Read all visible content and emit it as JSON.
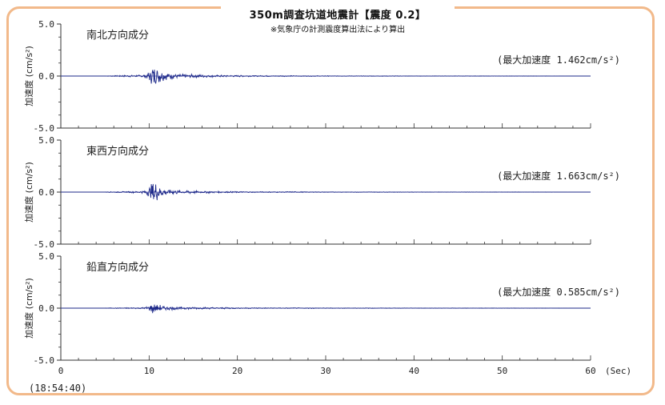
{
  "title": "350m調査坑道地震計【震度 0.2】",
  "subtitle": "※気象庁の計測震度算出法により算出",
  "timestamp": "(18:54:40)",
  "chart_data": {
    "type": "line",
    "x_unit": "(Sec)",
    "x_ticks": [
      "0",
      "10",
      "20",
      "30",
      "40",
      "50",
      "60"
    ],
    "xlim": [
      0,
      60
    ],
    "ylim": [
      -5.0,
      5.0
    ],
    "y_ticks": [
      "5.0",
      "0.0",
      "-5.0"
    ],
    "ylabel": "加速度 (cm/s²)",
    "line_color": "#1e2a8a",
    "axis_line_color": "#8a8ad0",
    "panels": [
      {
        "name": "南北方向成分",
        "peak_label": "(最大加速度 1.462cm/s²)",
        "peak": 1.462,
        "series": [
          [
            0,
            0
          ],
          [
            5,
            0
          ],
          [
            5.5,
            0.05
          ],
          [
            6,
            -0.06
          ],
          [
            7,
            0.08
          ],
          [
            8,
            -0.1
          ],
          [
            9,
            0.12
          ],
          [
            9.6,
            -0.2
          ],
          [
            10,
            0.5
          ],
          [
            10.2,
            -0.6
          ],
          [
            10.4,
            1.46
          ],
          [
            10.55,
            -1.2
          ],
          [
            10.7,
            0.9
          ],
          [
            10.9,
            -0.8
          ],
          [
            11.1,
            0.7
          ],
          [
            11.3,
            -0.6
          ],
          [
            11.5,
            0.5
          ],
          [
            11.7,
            -0.45
          ],
          [
            12,
            0.4
          ],
          [
            12.3,
            -0.35
          ],
          [
            12.7,
            0.3
          ],
          [
            13.2,
            -0.25
          ],
          [
            14,
            0.2
          ],
          [
            15,
            -0.18
          ],
          [
            16,
            0.16
          ],
          [
            17,
            -0.12
          ],
          [
            18,
            0.1
          ],
          [
            20,
            -0.08
          ],
          [
            22,
            0.06
          ],
          [
            25,
            -0.05
          ],
          [
            28,
            0.04
          ],
          [
            32,
            -0.03
          ],
          [
            36,
            0.03
          ],
          [
            40,
            -0.02
          ],
          [
            45,
            0.02
          ],
          [
            50,
            -0.015
          ],
          [
            55,
            0.01
          ],
          [
            60,
            0
          ]
        ]
      },
      {
        "name": "東西方向成分",
        "peak_label": "(最大加速度 1.663cm/s²)",
        "peak": 1.663,
        "series": [
          [
            0,
            0
          ],
          [
            5,
            0
          ],
          [
            5.5,
            0.04
          ],
          [
            6,
            -0.05
          ],
          [
            7,
            0.06
          ],
          [
            8,
            -0.08
          ],
          [
            9,
            0.1
          ],
          [
            9.6,
            -0.18
          ],
          [
            10,
            0.5
          ],
          [
            10.2,
            -0.7
          ],
          [
            10.4,
            1.3
          ],
          [
            10.55,
            -1.66
          ],
          [
            10.7,
            1.0
          ],
          [
            10.9,
            -0.9
          ],
          [
            11.1,
            0.75
          ],
          [
            11.3,
            -0.6
          ],
          [
            11.5,
            0.5
          ],
          [
            11.7,
            -0.45
          ],
          [
            12,
            0.35
          ],
          [
            12.3,
            -0.3
          ],
          [
            12.7,
            0.28
          ],
          [
            13.2,
            -0.22
          ],
          [
            14,
            0.18
          ],
          [
            15,
            -0.15
          ],
          [
            16,
            0.12
          ],
          [
            17,
            -0.1
          ],
          [
            18,
            0.08
          ],
          [
            20,
            -0.07
          ],
          [
            22,
            0.05
          ],
          [
            25,
            -0.05
          ],
          [
            28,
            0.04
          ],
          [
            32,
            -0.03
          ],
          [
            36,
            0.03
          ],
          [
            40,
            -0.02
          ],
          [
            45,
            0.02
          ],
          [
            50,
            -0.015
          ],
          [
            55,
            0.01
          ],
          [
            60,
            0
          ]
        ]
      },
      {
        "name": "鉛直方向成分",
        "peak_label": "(最大加速度 0.585cm/s²)",
        "peak": 0.585,
        "series": [
          [
            0,
            0
          ],
          [
            5,
            0
          ],
          [
            5.5,
            0.03
          ],
          [
            6,
            -0.04
          ],
          [
            7,
            0.05
          ],
          [
            8,
            -0.06
          ],
          [
            9,
            0.08
          ],
          [
            9.6,
            -0.12
          ],
          [
            10,
            0.25
          ],
          [
            10.2,
            -0.35
          ],
          [
            10.4,
            0.585
          ],
          [
            10.55,
            -0.5
          ],
          [
            10.7,
            0.45
          ],
          [
            10.9,
            -0.4
          ],
          [
            11.1,
            0.38
          ],
          [
            11.3,
            -0.32
          ],
          [
            11.5,
            0.28
          ],
          [
            11.7,
            -0.25
          ],
          [
            12,
            0.22
          ],
          [
            12.3,
            -0.2
          ],
          [
            12.7,
            0.18
          ],
          [
            13.2,
            -0.15
          ],
          [
            14,
            0.14
          ],
          [
            15,
            -0.12
          ],
          [
            16,
            0.1
          ],
          [
            17,
            -0.09
          ],
          [
            18,
            0.08
          ],
          [
            20,
            -0.06
          ],
          [
            22,
            0.05
          ],
          [
            25,
            -0.04
          ],
          [
            28,
            0.04
          ],
          [
            32,
            -0.03
          ],
          [
            36,
            0.03
          ],
          [
            40,
            -0.02
          ],
          [
            45,
            0.02
          ],
          [
            50,
            -0.015
          ],
          [
            55,
            0.01
          ],
          [
            60,
            0
          ]
        ]
      }
    ]
  }
}
